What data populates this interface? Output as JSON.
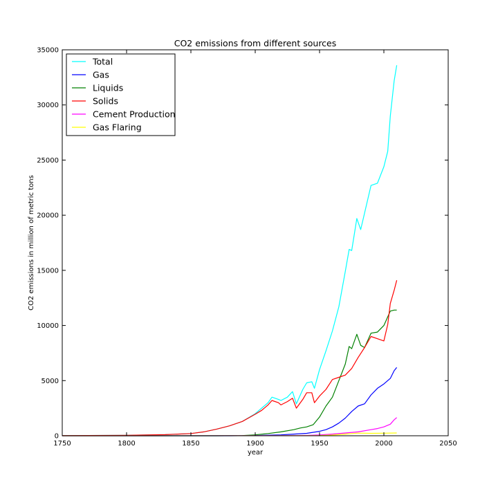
{
  "chart_data": {
    "type": "line",
    "title": "CO2 emissions from different sources",
    "xlabel": "year",
    "ylabel": "CO2 emissions in million of metric tons",
    "xlim": [
      1750,
      2050
    ],
    "ylim": [
      0,
      35000
    ],
    "xticks": [
      1750,
      1800,
      1850,
      1900,
      1950,
      2000,
      2050
    ],
    "yticks": [
      0,
      5000,
      10000,
      15000,
      20000,
      25000,
      30000,
      35000
    ],
    "legend_position": "top-left",
    "grid": false,
    "series": [
      {
        "name": "Total",
        "color": "#00ffff",
        "x": [
          1750,
          1800,
          1830,
          1850,
          1860,
          1870,
          1880,
          1890,
          1900,
          1905,
          1910,
          1913,
          1918,
          1920,
          1925,
          1929,
          1932,
          1937,
          1940,
          1944,
          1946,
          1950,
          1955,
          1960,
          1965,
          1970,
          1973,
          1975,
          1979,
          1982,
          1985,
          1990,
          1995,
          2000,
          2003,
          2005,
          2008,
          2010
        ],
        "y": [
          10,
          40,
          100,
          200,
          350,
          600,
          900,
          1300,
          2000,
          2500,
          3000,
          3500,
          3300,
          3200,
          3500,
          4000,
          2900,
          4200,
          4800,
          4900,
          4300,
          6000,
          7700,
          9500,
          11700,
          14900,
          16900,
          16800,
          19700,
          18700,
          20200,
          22700,
          22900,
          24400,
          25800,
          29000,
          32200,
          33600
        ]
      },
      {
        "name": "Gas",
        "color": "#0000ff",
        "x": [
          1750,
          1880,
          1900,
          1920,
          1930,
          1940,
          1950,
          1955,
          1960,
          1965,
          1970,
          1975,
          1980,
          1985,
          1990,
          1995,
          2000,
          2005,
          2008,
          2010
        ],
        "y": [
          0,
          0,
          20,
          80,
          150,
          220,
          400,
          550,
          800,
          1150,
          1600,
          2200,
          2700,
          2900,
          3700,
          4300,
          4700,
          5200,
          5900,
          6200
        ]
      },
      {
        "name": "Liquids",
        "color": "#008000",
        "x": [
          1750,
          1870,
          1890,
          1900,
          1910,
          1920,
          1930,
          1935,
          1940,
          1945,
          1950,
          1955,
          1960,
          1965,
          1970,
          1973,
          1975,
          1979,
          1982,
          1985,
          1990,
          1995,
          2000,
          2005,
          2008,
          2010
        ],
        "y": [
          0,
          0,
          20,
          80,
          200,
          350,
          550,
          700,
          800,
          1000,
          1700,
          2700,
          3500,
          5000,
          6500,
          8100,
          7900,
          9200,
          8200,
          8000,
          9300,
          9400,
          10000,
          11300,
          11400,
          11400
        ]
      },
      {
        "name": "Solids",
        "color": "#ff0000",
        "x": [
          1750,
          1800,
          1830,
          1850,
          1860,
          1870,
          1880,
          1890,
          1900,
          1905,
          1910,
          1913,
          1918,
          1920,
          1925,
          1929,
          1932,
          1937,
          1940,
          1944,
          1946,
          1950,
          1955,
          1960,
          1965,
          1970,
          1975,
          1980,
          1985,
          1990,
          1995,
          2000,
          2003,
          2005,
          2008,
          2010
        ],
        "y": [
          10,
          40,
          100,
          200,
          350,
          600,
          900,
          1300,
          1950,
          2300,
          2800,
          3200,
          3000,
          2800,
          3100,
          3400,
          2500,
          3300,
          3900,
          3900,
          3000,
          3600,
          4200,
          5100,
          5300,
          5500,
          6100,
          7100,
          8000,
          9000,
          8800,
          8600,
          10100,
          12000,
          13200,
          14100
        ]
      },
      {
        "name": "Cement Production",
        "color": "#ff00ff",
        "x": [
          1750,
          1920,
          1940,
          1950,
          1960,
          1970,
          1980,
          1990,
          1995,
          2000,
          2005,
          2008,
          2010
        ],
        "y": [
          0,
          5,
          30,
          70,
          150,
          250,
          350,
          550,
          650,
          800,
          1050,
          1450,
          1650
        ]
      },
      {
        "name": "Gas Flaring",
        "color": "#ffff00",
        "x": [
          1750,
          1940,
          1950,
          1960,
          1970,
          1975,
          1980,
          1990,
          2000,
          2010
        ],
        "y": [
          0,
          5,
          20,
          60,
          150,
          200,
          240,
          220,
          230,
          250
        ]
      }
    ]
  }
}
